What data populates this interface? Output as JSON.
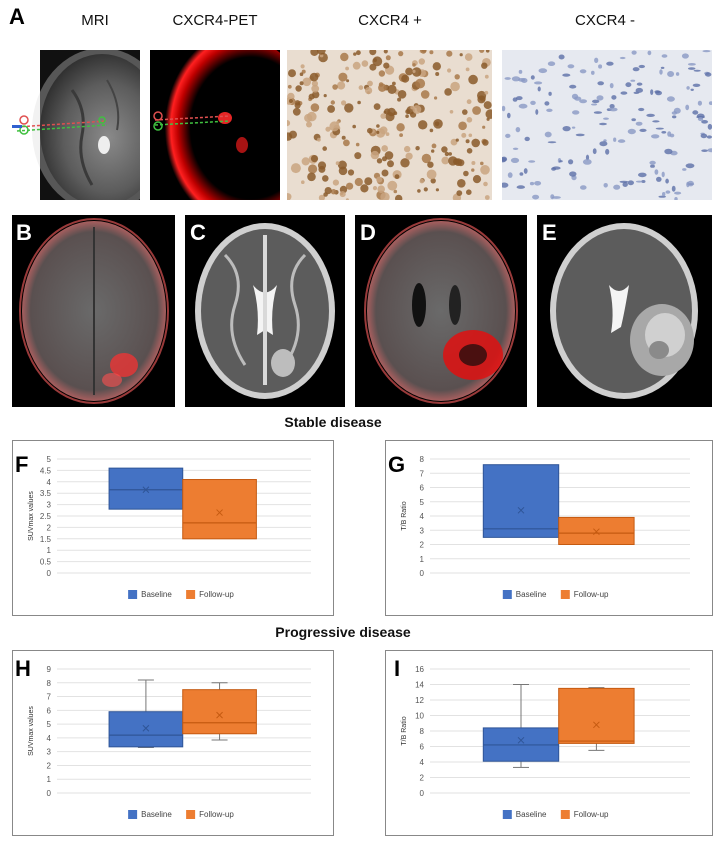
{
  "panels": {
    "row1_letter": "A",
    "row1_titles": [
      "MRI",
      "CXCR4-PET",
      "CXCR4 +",
      "CXCR4 -"
    ],
    "row2_letters": [
      "B",
      "C",
      "D",
      "E"
    ]
  },
  "sections": {
    "stable": "Stable disease",
    "progressive": "Progressive disease"
  },
  "colors": {
    "baseline": "#4472C4",
    "followup": "#ED7D31",
    "baseline_dark": "#2F5597",
    "followup_dark": "#C55A11"
  },
  "chart_data": [
    {
      "panel": "F",
      "type": "box",
      "title": "",
      "ylabel": "SUVmax values",
      "ylim": [
        0,
        5
      ],
      "yticks": [
        "0",
        "0.5",
        "1",
        "1.5",
        "2",
        "2.5",
        "3",
        "3.5",
        "4",
        "4.5",
        "5"
      ],
      "legend": [
        "Baseline",
        "Follow-up"
      ],
      "legend_position": "bottom",
      "series": [
        {
          "name": "Baseline",
          "min": 2.8,
          "q1": 2.8,
          "median": 3.65,
          "q3": 4.6,
          "max": 4.6,
          "mean": 3.65
        },
        {
          "name": "Follow-up",
          "min": 1.5,
          "q1": 1.5,
          "median": 2.2,
          "q3": 4.1,
          "max": 4.1,
          "mean": 2.65
        }
      ]
    },
    {
      "panel": "G",
      "type": "box",
      "title": "",
      "ylabel": "T/B Ratio",
      "ylim": [
        0,
        8
      ],
      "yticks": [
        "0",
        "1",
        "2",
        "3",
        "4",
        "5",
        "6",
        "7",
        "8"
      ],
      "legend": [
        "Baseline",
        "Follow-up"
      ],
      "legend_position": "bottom",
      "series": [
        {
          "name": "Baseline",
          "min": 2.5,
          "q1": 2.5,
          "median": 3.1,
          "q3": 7.6,
          "max": 7.6,
          "mean": 4.4
        },
        {
          "name": "Follow-up",
          "min": 2.0,
          "q1": 2.0,
          "median": 2.8,
          "q3": 3.9,
          "max": 3.9,
          "mean": 2.9
        }
      ]
    },
    {
      "panel": "H",
      "type": "box",
      "title": "",
      "ylabel": "SUVmax values",
      "ylim": [
        0,
        9
      ],
      "yticks": [
        "0",
        "1",
        "2",
        "3",
        "4",
        "5",
        "6",
        "7",
        "8",
        "9"
      ],
      "legend": [
        "Baseline",
        "Follow-up"
      ],
      "legend_position": "bottom",
      "series": [
        {
          "name": "Baseline",
          "min": 3.3,
          "q1": 3.35,
          "median": 4.2,
          "q3": 5.9,
          "max": 8.2,
          "mean": 4.7
        },
        {
          "name": "Follow-up",
          "min": 3.85,
          "q1": 4.3,
          "median": 5.1,
          "q3": 7.5,
          "max": 8.0,
          "mean": 5.65
        }
      ]
    },
    {
      "panel": "I",
      "type": "box",
      "title": "",
      "ylabel": "T/B Ratio",
      "ylim": [
        0,
        16
      ],
      "yticks": [
        "0",
        "2",
        "4",
        "6",
        "8",
        "10",
        "12",
        "14",
        "16"
      ],
      "legend": [
        "Baseline",
        "Follow-up"
      ],
      "legend_position": "bottom",
      "series": [
        {
          "name": "Baseline",
          "min": 3.3,
          "q1": 4.1,
          "median": 6.2,
          "q3": 8.4,
          "max": 14.0,
          "mean": 6.8
        },
        {
          "name": "Follow-up",
          "min": 5.5,
          "q1": 6.4,
          "median": 6.7,
          "q3": 13.5,
          "max": 13.6,
          "mean": 8.8
        }
      ]
    }
  ]
}
